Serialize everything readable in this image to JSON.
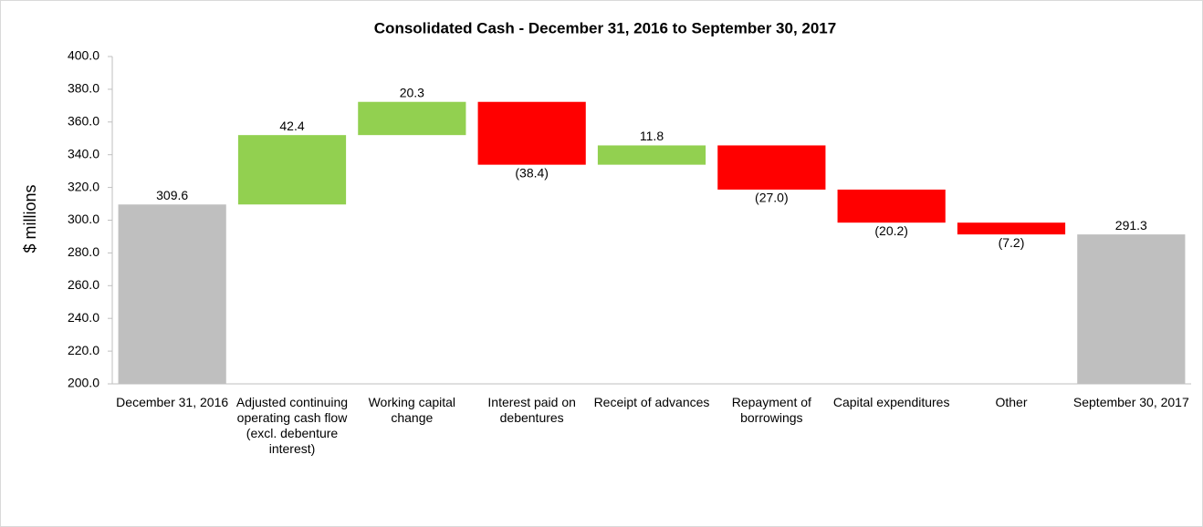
{
  "chart_data": {
    "type": "waterfall",
    "title": "Consolidated  Cash - December 31, 2016 to September 30, 2017",
    "y_label": "$ millions",
    "categories": [
      "December 31, 2016",
      "Adjusted continuing operating cash flow (excl. debenture interest)",
      "Working capital change",
      "Interest paid on debentures",
      "Receipt of advances",
      "Repayment of borrowings",
      "Capital expenditures",
      "Other",
      "September 30, 2017"
    ],
    "measures": [
      "total",
      "relative",
      "relative",
      "relative",
      "relative",
      "relative",
      "relative",
      "relative",
      "total"
    ],
    "values": [
      309.6,
      42.4,
      20.3,
      -38.4,
      11.8,
      -27.0,
      -20.2,
      -7.2,
      291.3
    ],
    "value_labels": [
      "309.6",
      "42.4",
      "20.3",
      "(38.4)",
      "11.8",
      "(27.0)",
      "(20.2)",
      "(7.2)",
      "291.3"
    ],
    "colors": {
      "total": "#bfbfbf",
      "increase": "#92d050",
      "decrease": "#ff0000"
    },
    "ylim": [
      200,
      400
    ],
    "yticks": [
      {
        "value": 200,
        "label": "200.0"
      },
      {
        "value": 220,
        "label": "220.0"
      },
      {
        "value": 240,
        "label": "240.0"
      },
      {
        "value": 260,
        "label": "260.0"
      },
      {
        "value": 280,
        "label": "280.0"
      },
      {
        "value": 300,
        "label": "300.0"
      },
      {
        "value": 320,
        "label": "320.0"
      },
      {
        "value": 340,
        "label": "340.0"
      },
      {
        "value": 360,
        "label": "360.0"
      },
      {
        "value": 380,
        "label": "380.0"
      },
      {
        "value": 400,
        "label": "400.0"
      }
    ]
  }
}
